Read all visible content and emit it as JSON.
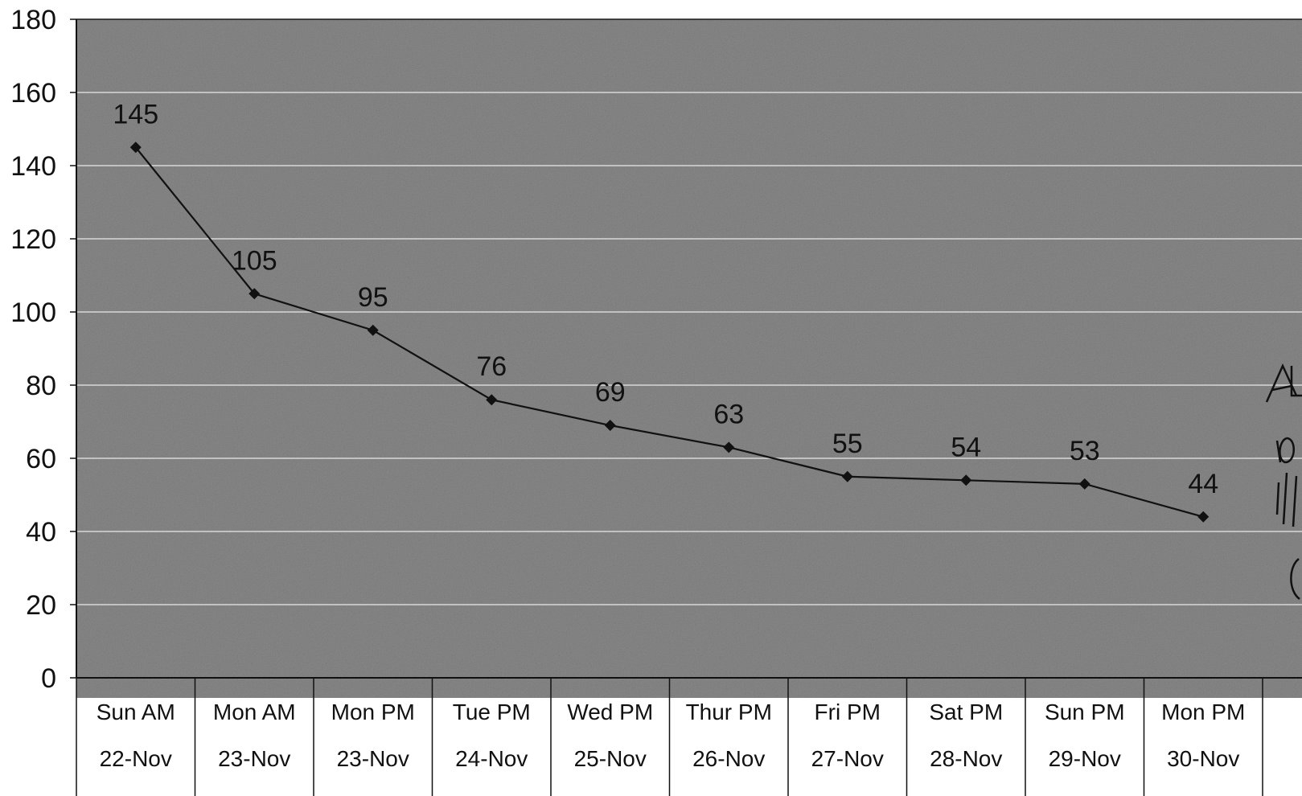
{
  "chart_data": {
    "type": "line",
    "title": "",
    "xlabel": "",
    "ylabel": "",
    "ylim": [
      0,
      180
    ],
    "yticks": [
      0,
      20,
      40,
      60,
      80,
      100,
      120,
      140,
      160,
      180
    ],
    "grid": true,
    "legend": "none",
    "categories": [
      {
        "line1": "Sun AM",
        "line2": "22-Nov"
      },
      {
        "line1": "Mon AM",
        "line2": "23-Nov"
      },
      {
        "line1": "Mon PM",
        "line2": "23-Nov"
      },
      {
        "line1": "Tue PM",
        "line2": "24-Nov"
      },
      {
        "line1": "Wed PM",
        "line2": "25-Nov"
      },
      {
        "line1": "Thur PM",
        "line2": "26-Nov"
      },
      {
        "line1": "Fri PM",
        "line2": "27-Nov"
      },
      {
        "line1": "Sat PM",
        "line2": "28-Nov"
      },
      {
        "line1": "Sun PM",
        "line2": "29-Nov"
      },
      {
        "line1": "Mon PM",
        "line2": "30-Nov"
      }
    ],
    "series": [
      {
        "values": [
          145,
          105,
          95,
          76,
          69,
          63,
          55,
          54,
          53,
          44
        ]
      }
    ],
    "colors": {
      "plot_background": "#8a8a8a",
      "line": "#111111",
      "gridline": "#d8d8d8"
    }
  }
}
